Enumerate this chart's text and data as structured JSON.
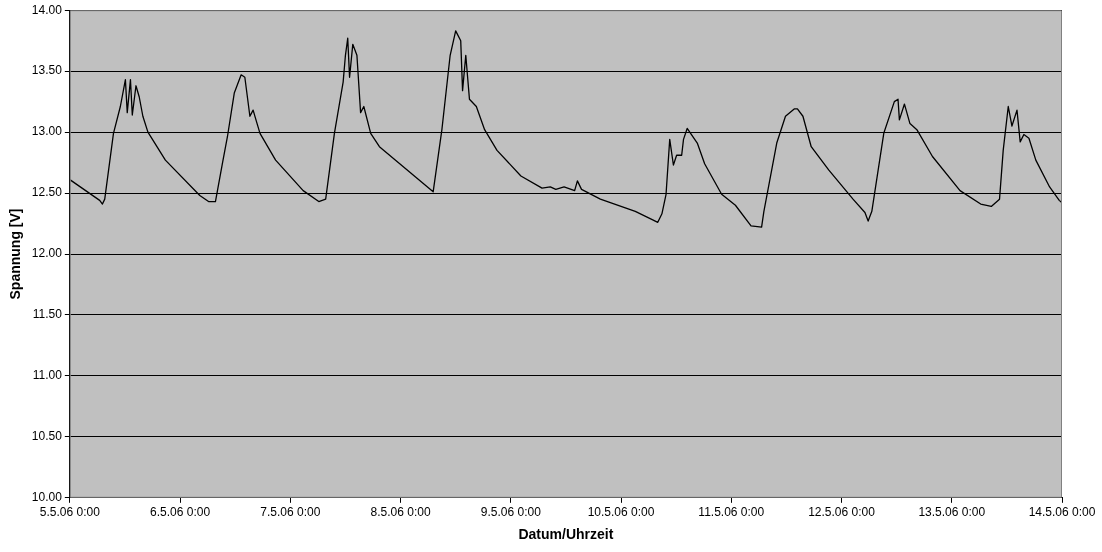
{
  "chart_data": {
    "type": "line",
    "xlabel": "Datum/Uhrzeit",
    "ylabel": "Spannung [V]",
    "xlim": [
      "--05-05T00:00",
      "--05-14T00:00"
    ],
    "xticks": [
      {
        "value": "--05-05T00:00",
        "label": "5.5.06 0:00"
      },
      {
        "value": "--05-06T00:00",
        "label": "6.5.06 0:00"
      },
      {
        "value": "--05-07T00:00",
        "label": "7.5.06 0:00"
      },
      {
        "value": "--05-08T00:00",
        "label": "8.5.06 0:00"
      },
      {
        "value": "--05-09T00:00",
        "label": "9.5.06 0:00"
      },
      {
        "value": "--05-10T00:00",
        "label": "10.5.06 0:00"
      },
      {
        "value": "--05-11T00:00",
        "label": "11.5.06 0:00"
      },
      {
        "value": "--05-12T00:00",
        "label": "12.5.06 0:00"
      },
      {
        "value": "--05-13T00:00",
        "label": "13.5.06 0:00"
      },
      {
        "value": "--05-14T00:00",
        "label": "14.5.06 0:00"
      }
    ],
    "ylim": [
      10,
      14
    ],
    "yticks": [
      {
        "value": 10,
        "label": "10.00"
      },
      {
        "value": 10.5,
        "label": "10.50"
      },
      {
        "value": 11,
        "label": "11.00"
      },
      {
        "value": 11.5,
        "label": "11.50"
      },
      {
        "value": 12,
        "label": "12.00"
      },
      {
        "value": 12.5,
        "label": "12.50"
      },
      {
        "value": 13,
        "label": "13.00"
      },
      {
        "value": 13.5,
        "label": "13.50"
      },
      {
        "value": 14,
        "label": "14.00"
      }
    ],
    "grid": "y",
    "legend": false,
    "marker": "none",
    "line_style": "solid",
    "series": [
      {
        "color": "#000000",
        "x": [
          "--05-05T00:00",
          "--05-05T06:30",
          "--05-05T07:06",
          "--05-05T07:36",
          "--05-05T09:30",
          "--05-05T11:00",
          "--05-05T12:06",
          "--05-05T12:30",
          "--05-05T13:12",
          "--05-05T13:36",
          "--05-05T14:24",
          "--05-05T15:06",
          "--05-05T15:54",
          "--05-05T17:00",
          "--05-05T20:48",
          "--05-06T04:18",
          "--05-06T06:12",
          "--05-06T07:42",
          "--05-06T09:12",
          "--05-06T10:18",
          "--05-06T11:48",
          "--05-06T13:18",
          "--05-06T14:06",
          "--05-06T15:12",
          "--05-06T15:54",
          "--05-06T17:24",
          "--05-06T20:48",
          "--05-07T02:48",
          "--05-07T06:12",
          "--05-07T07:42",
          "--05-07T09:36",
          "--05-07T11:30",
          "--05-07T12:00",
          "--05-07T12:30",
          "--05-07T12:54",
          "--05-07T13:36",
          "--05-07T14:30",
          "--05-07T15:18",
          "--05-07T16:00",
          "--05-07T17:30",
          "--05-07T19:24",
          "--05-08T07:06",
          "--05-08T09:00",
          "--05-08T10:48",
          "--05-08T12:00",
          "--05-08T13:06",
          "--05-08T13:30",
          "--05-08T14:12",
          "--05-08T15:00",
          "--05-08T16:30",
          "--05-08T18:18",
          "--05-08T21:00",
          "--05-09T02:12",
          "--05-09T06:48",
          "--05-09T08:36",
          "--05-09T09:48",
          "--05-09T11:36",
          "--05-09T13:54",
          "--05-09T14:30",
          "--05-09T15:24",
          "--05-09T19:30",
          "--05-10T03:06",
          "--05-10T06:54",
          "--05-10T08:00",
          "--05-10T08:54",
          "--05-10T09:48",
          "--05-10T10:36",
          "--05-10T11:24",
          "--05-10T12:06",
          "--05-10T13:12",
          "--05-10T13:36",
          "--05-10T14:24",
          "--05-10T16:36",
          "--05-10T18:12",
          "--05-10T21:54",
          "--05-11T00:54",
          "--05-11T04:18",
          "--05-11T06:36",
          "--05-11T07:06",
          "--05-11T09:54",
          "--05-11T11:48",
          "--05-11T13:42",
          "--05-11T14:24",
          "--05-11T15:36",
          "--05-11T17:24",
          "--05-11T21:12",
          "--05-12T02:30",
          "--05-12T05:06",
          "--05-12T05:48",
          "--05-12T06:36",
          "--05-12T09:12",
          "--05-12T11:30",
          "--05-12T12:18",
          "--05-12T12:36",
          "--05-12T13:42",
          "--05-12T14:54",
          "--05-12T16:24",
          "--05-12T19:48",
          "--05-13T01:48",
          "--05-13T06:18",
          "--05-13T08:36",
          "--05-13T10:24",
          "--05-13T11:12",
          "--05-13T12:18",
          "--05-13T13:06",
          "--05-13T14:12",
          "--05-13T14:54",
          "--05-13T15:42",
          "--05-13T16:48",
          "--05-13T18:18",
          "--05-13T21:18",
          "--05-13T23:24",
          "--05-14T00:00"
        ],
        "values": [
          12.61,
          12.44,
          12.41,
          12.45,
          12.99,
          13.21,
          13.43,
          13.16,
          13.43,
          13.14,
          13.38,
          13.29,
          13.13,
          13.0,
          12.77,
          12.48,
          12.43,
          12.43,
          12.74,
          12.96,
          13.32,
          13.47,
          13.45,
          13.13,
          13.18,
          12.99,
          12.77,
          12.52,
          12.43,
          12.45,
          12.99,
          13.41,
          13.63,
          13.77,
          13.45,
          13.72,
          13.63,
          13.16,
          13.21,
          12.99,
          12.88,
          12.51,
          13.02,
          13.63,
          13.83,
          13.75,
          13.34,
          13.63,
          13.27,
          13.21,
          13.02,
          12.85,
          12.64,
          12.54,
          12.55,
          12.53,
          12.55,
          12.52,
          12.6,
          12.53,
          12.45,
          12.35,
          12.28,
          12.26,
          12.33,
          12.49,
          12.94,
          12.73,
          12.81,
          12.81,
          12.94,
          13.03,
          12.91,
          12.74,
          12.49,
          12.4,
          12.23,
          12.22,
          12.35,
          12.91,
          13.13,
          13.19,
          13.19,
          13.13,
          12.88,
          12.69,
          12.45,
          12.34,
          12.27,
          12.35,
          12.99,
          13.25,
          13.27,
          13.1,
          13.23,
          13.07,
          13.02,
          12.8,
          12.52,
          12.41,
          12.39,
          12.45,
          12.85,
          13.21,
          13.05,
          13.18,
          12.92,
          12.98,
          12.95,
          12.77,
          12.55,
          12.44,
          12.42
        ]
      }
    ]
  }
}
